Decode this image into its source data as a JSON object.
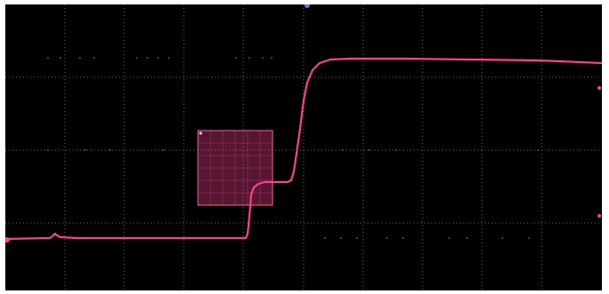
{
  "display": {
    "background_color": "#000000",
    "grid_color": "#6a6a6a",
    "grid_divisions_x": 10,
    "grid_divisions_y": 4,
    "grid": true
  },
  "waveform": {
    "color": "#ff3f8f",
    "description_levels": {
      "low": 0.0,
      "plateau": 0.36,
      "high": 1.0
    }
  },
  "trigger_marker": {
    "icon": "trigger-position-marker-icon",
    "color": "#5a7fd4"
  },
  "level_markers": {
    "icon": "channel-level-marker-icon",
    "color": "#ff3f8f"
  },
  "mask_region": {
    "color": "#ff3f8f",
    "fill_opacity": 0.35
  }
}
